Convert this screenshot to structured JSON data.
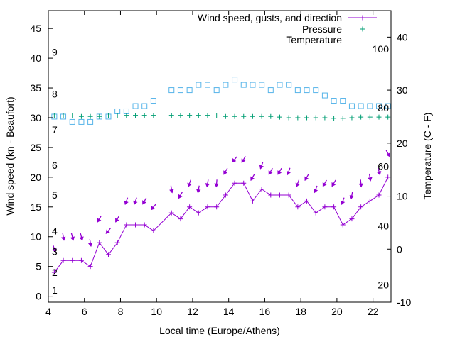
{
  "chart_data": {
    "type": "line",
    "xlabel": "Local time (Europe/Athens)",
    "ylabel_left": "Wind speed (kn - Beaufort)",
    "ylabel_right": "Temperature (C - F)",
    "x_range": [
      4,
      23
    ],
    "x_ticks": [
      4,
      6,
      8,
      10,
      12,
      14,
      16,
      18,
      20,
      22
    ],
    "y_left_range": [
      -1,
      48
    ],
    "y_left_ticks": [
      0,
      5,
      10,
      15,
      20,
      25,
      30,
      35,
      40,
      45
    ],
    "y_right_range": [
      -10,
      45
    ],
    "y_right_ticks": [
      -10,
      0,
      10,
      20,
      30,
      40
    ],
    "beaufort_labels": [
      {
        "label": "1",
        "kn": 1
      },
      {
        "label": "2",
        "kn": 4
      },
      {
        "label": "3",
        "kn": 7.5
      },
      {
        "label": "4",
        "kn": 11
      },
      {
        "label": "5",
        "kn": 17
      },
      {
        "label": "6",
        "kn": 22
      },
      {
        "label": "7",
        "kn": 28
      },
      {
        "label": "8",
        "kn": 34
      },
      {
        "label": "9",
        "kn": 41
      }
    ],
    "fahrenheit_labels": [
      {
        "label": "20",
        "celsius": -6.7
      },
      {
        "label": "40",
        "celsius": 4.4
      },
      {
        "label": "60",
        "celsius": 15.6
      },
      {
        "label": "80",
        "celsius": 26.7
      },
      {
        "label": "100",
        "celsius": 37.8
      }
    ],
    "series": [
      {
        "name": "Wind speed, gusts, and direction",
        "axis": "left",
        "color": "#9400d3",
        "x": [
          4.33,
          4.83,
          5.33,
          5.83,
          6.33,
          6.83,
          7.33,
          7.83,
          8.33,
          8.83,
          9.33,
          9.83,
          10.83,
          11.33,
          11.83,
          12.33,
          12.83,
          13.33,
          13.83,
          14.33,
          14.83,
          15.33,
          15.83,
          16.33,
          16.83,
          17.33,
          17.83,
          18.33,
          18.83,
          19.33,
          19.83,
          20.33,
          20.83,
          21.33,
          21.83,
          22.33,
          22.83
        ],
        "values": [
          4,
          6,
          6,
          6,
          5,
          9,
          7,
          9,
          12,
          12,
          12,
          11,
          14,
          13,
          15,
          14,
          15,
          15,
          17,
          19,
          19,
          16,
          18,
          17,
          17,
          17,
          15,
          16,
          14,
          15,
          15,
          12,
          13,
          15,
          16,
          17,
          20
        ],
        "gusts": [
          8,
          10,
          10,
          10,
          9,
          13,
          11,
          13,
          16,
          16,
          16,
          15,
          18,
          17,
          19,
          18,
          19,
          19,
          21,
          23,
          23,
          20,
          22,
          21,
          21,
          21,
          19,
          20,
          18,
          19,
          19,
          16,
          17,
          19,
          20,
          21,
          24
        ],
        "direction_deg": [
          20,
          10,
          15,
          15,
          10,
          330,
          320,
          330,
          340,
          340,
          330,
          320,
          10,
          330,
          340,
          350,
          350,
          355,
          330,
          320,
          330,
          330,
          340,
          330,
          330,
          340,
          340,
          330,
          340,
          330,
          330,
          340,
          350,
          5,
          10,
          15,
          30
        ]
      },
      {
        "name": "Pressure",
        "axis": "left",
        "color": "#009e73",
        "x": [
          4.33,
          4.83,
          5.33,
          5.83,
          6.33,
          6.83,
          7.33,
          7.83,
          8.33,
          8.83,
          9.33,
          9.83,
          10.83,
          11.33,
          11.83,
          12.33,
          12.83,
          13.33,
          13.83,
          14.33,
          14.83,
          15.33,
          15.83,
          16.33,
          16.83,
          17.33,
          17.83,
          18.33,
          18.83,
          19.33,
          19.83,
          20.33,
          20.83,
          21.33,
          21.83,
          22.33,
          22.83
        ],
        "values": [
          30.3,
          30.3,
          30.3,
          30.2,
          30.2,
          30.2,
          30.3,
          30.3,
          30.4,
          30.4,
          30.4,
          30.4,
          30.4,
          30.4,
          30.4,
          30.4,
          30.4,
          30.3,
          30.2,
          30.2,
          30.2,
          30.2,
          30.2,
          30.2,
          30.1,
          30.0,
          30.0,
          30.0,
          30.0,
          30.0,
          29.9,
          29.9,
          30.0,
          30.1,
          30.1,
          30.1,
          30.1
        ]
      },
      {
        "name": "Temperature",
        "axis": "right",
        "color": "#56b4e9",
        "x": [
          4.33,
          4.83,
          5.33,
          5.83,
          6.33,
          6.83,
          7.33,
          7.83,
          8.33,
          8.83,
          9.33,
          9.83,
          10.83,
          11.33,
          11.83,
          12.33,
          12.83,
          13.33,
          13.83,
          14.33,
          14.83,
          15.33,
          15.83,
          16.33,
          16.83,
          17.33,
          17.83,
          18.33,
          18.83,
          19.33,
          19.83,
          20.33,
          20.83,
          21.33,
          21.83,
          22.33,
          22.83
        ],
        "values": [
          25,
          25,
          24,
          24,
          24,
          25,
          25,
          26,
          26,
          27,
          27,
          28,
          30,
          30,
          30,
          31,
          31,
          30,
          31,
          32,
          31,
          31,
          31,
          30,
          31,
          31,
          30,
          30,
          30,
          29,
          28,
          28,
          27,
          27,
          27,
          27,
          27
        ]
      }
    ],
    "legend_position": "top-right",
    "grid": false
  }
}
